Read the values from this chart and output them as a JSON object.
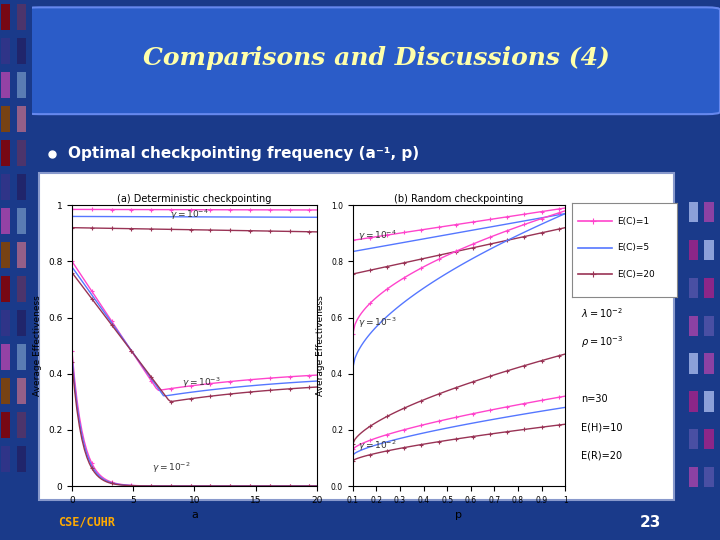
{
  "title": "Comparisons and Discussions (4)",
  "bullet": "Optimal checkpointing frequency (a⁻¹, p)",
  "slide_bg": "#1A3A8A",
  "header_box_color": "#2B5CC8",
  "header_box_edge": "#6688EE",
  "content_bg": "#2B55BB",
  "plot_bg": "#FFFFFF",
  "title_color": "#FFFFAA",
  "bullet_color": "#FFFFFF",
  "footer_text": "23",
  "footer_logo": "CSE/CUHR",
  "plot_a_xlabel": "a",
  "plot_a_ylabel": "Average Effectiveness",
  "plot_a_title": "(a) Deterministic checkpointing",
  "plot_b_xlabel": "p",
  "plot_b_ylabel": "Average Effectiveness",
  "plot_b_title": "(b) Random checkpointing",
  "legend_labels": [
    "E(C)=1",
    "E(C)=5",
    "E(C)=20"
  ],
  "ann_line1": "λ=10⁻²",
  "ann_line2": "ρ=10⁻³",
  "ann_line3": "n=30",
  "ann_line4": "E(H)=10",
  "ann_line5": "E(R)=20",
  "col_EC1": "#FF44CC",
  "col_EC5": "#5577FF",
  "col_EC20": "#993355",
  "dot_colors": [
    "#880000",
    "#884400",
    "#664488",
    "#3333AA",
    "#AA55AA",
    "#7799AA"
  ]
}
